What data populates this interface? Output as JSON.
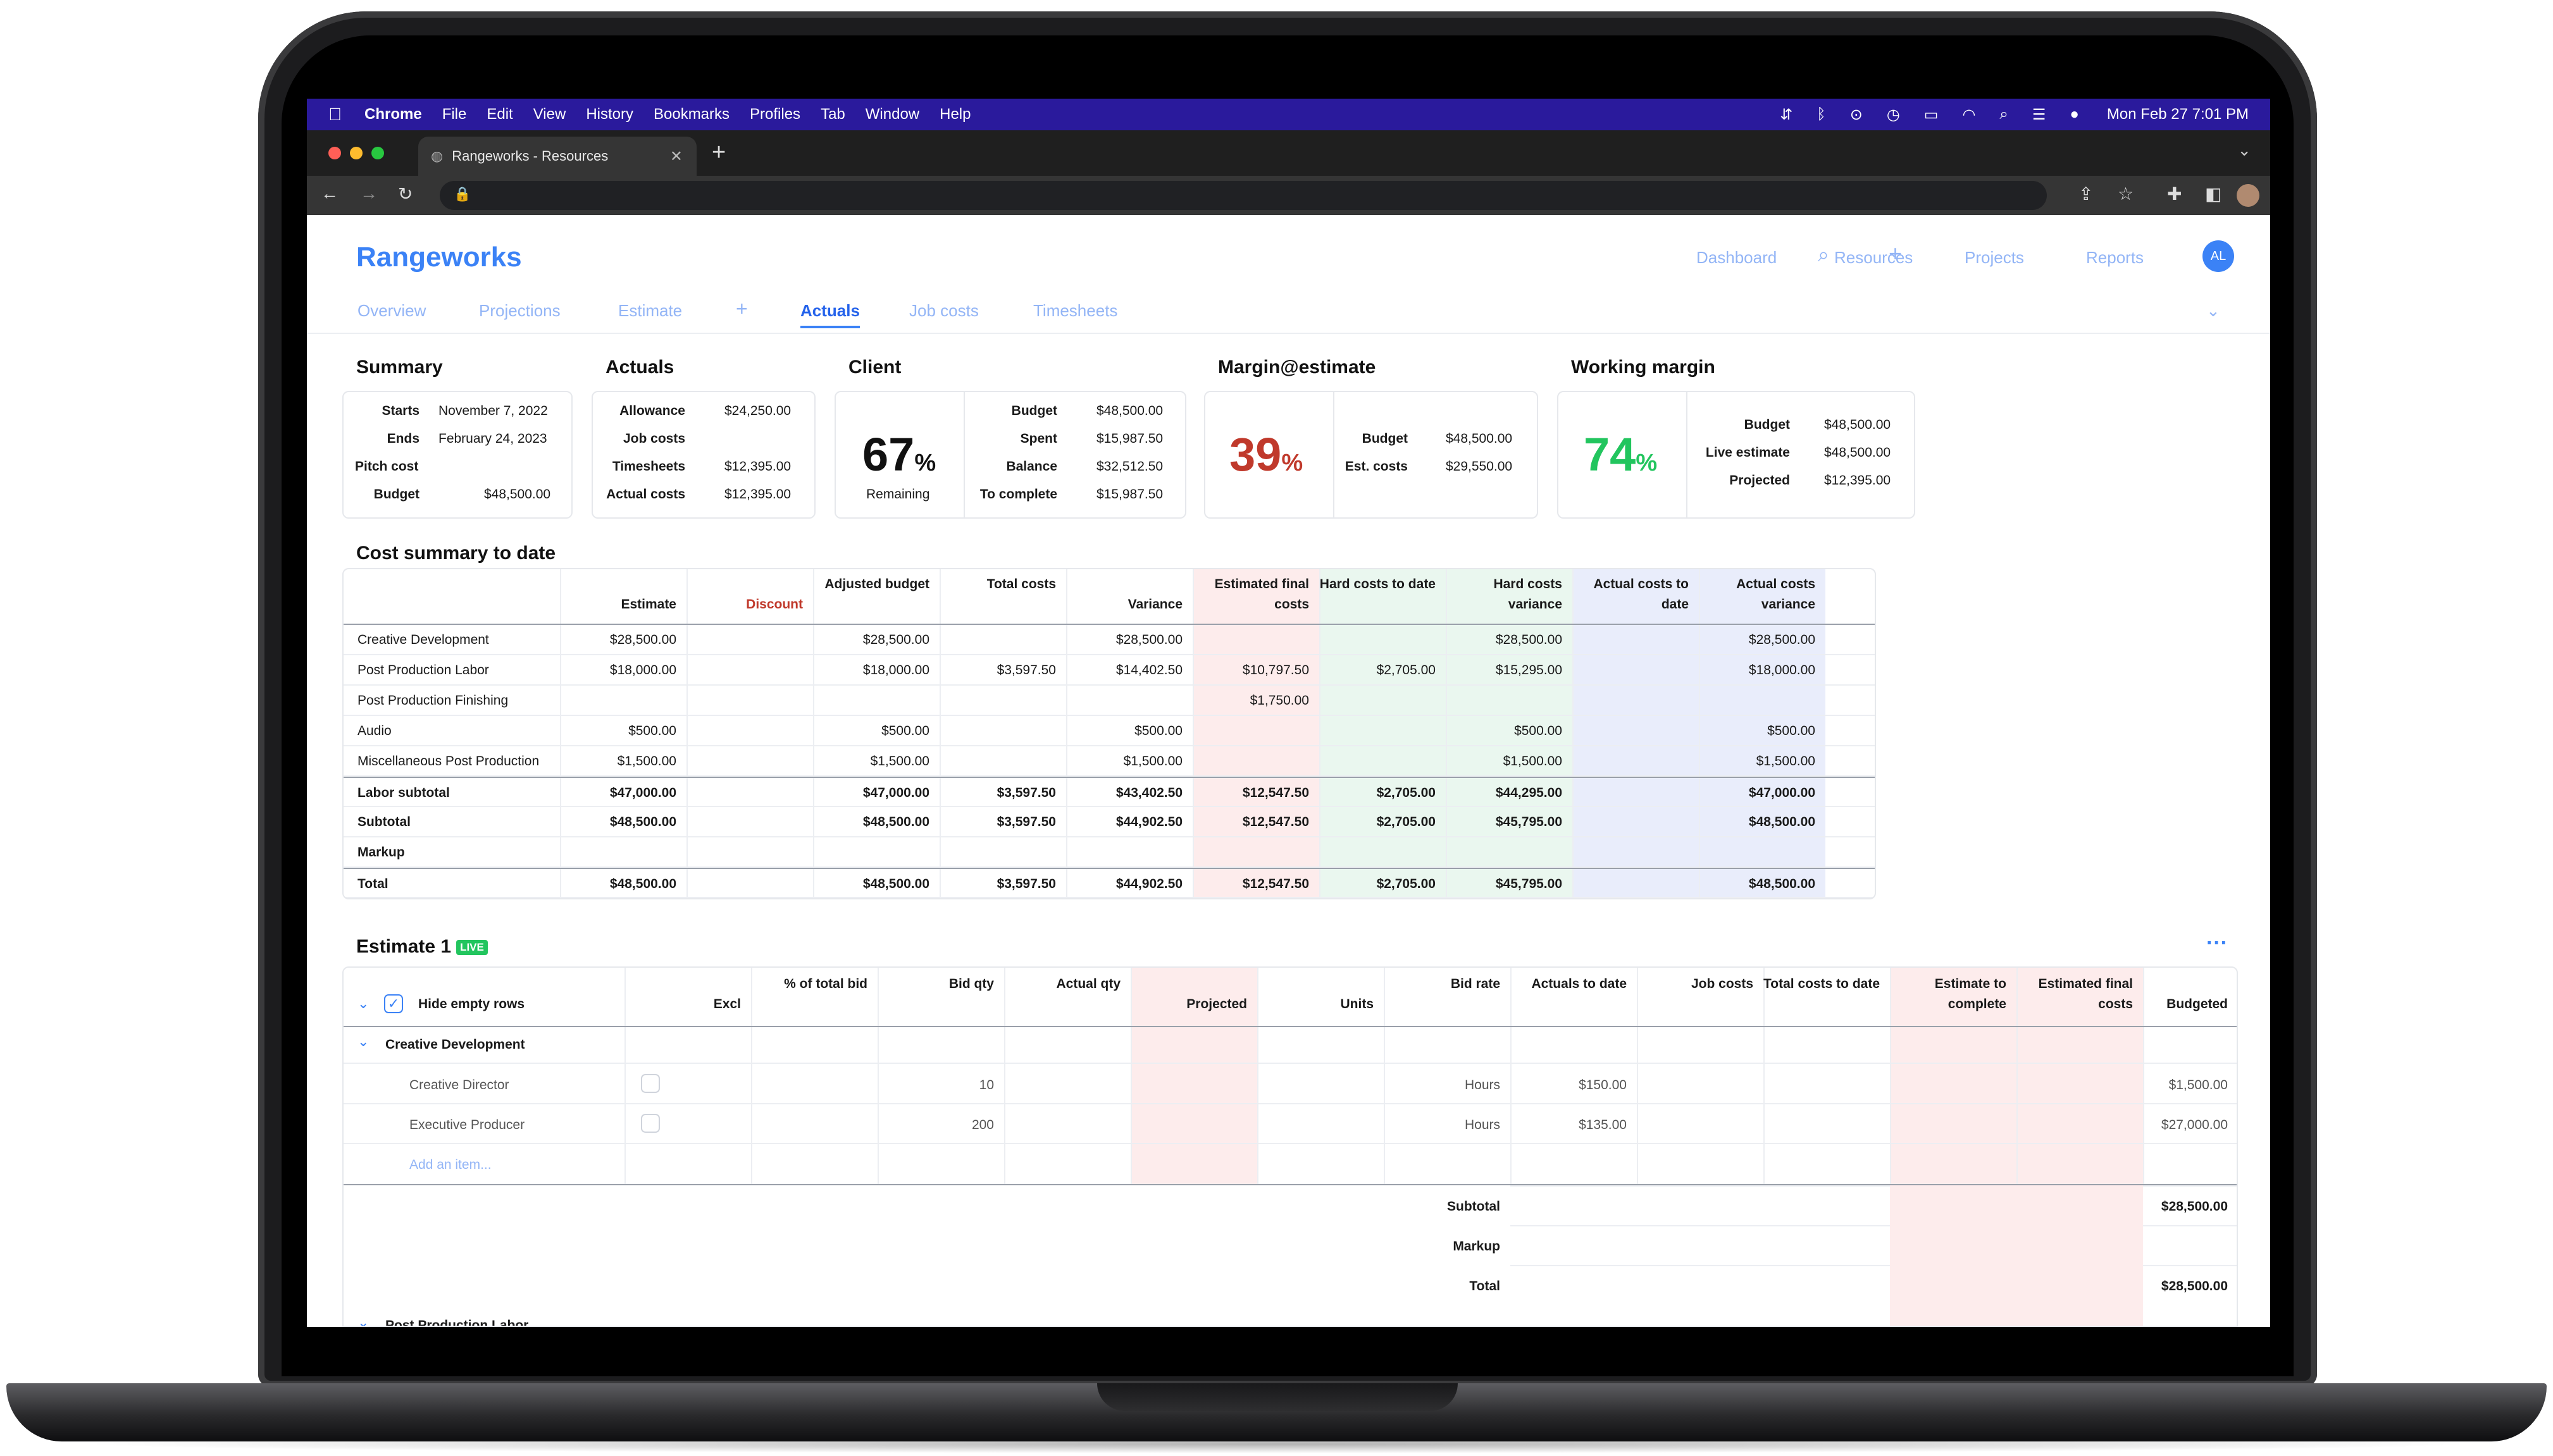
{
  "menubar": {
    "app": "Chrome",
    "items": [
      "File",
      "Edit",
      "View",
      "History",
      "Bookmarks",
      "Profiles",
      "Tab",
      "Window",
      "Help"
    ],
    "clock": "Mon Feb 27  7:01 PM"
  },
  "browser": {
    "tab_title": "Rangeworks - Resources"
  },
  "app": {
    "brand": "Rangeworks",
    "topnav": [
      "Dashboard",
      "Resources",
      "Projects",
      "Reports"
    ],
    "avatar": "AL",
    "subnav": [
      "Overview",
      "Projections",
      "Estimate",
      "Actuals",
      "Job costs",
      "Timesheets"
    ],
    "active_subnav": "Actuals"
  },
  "summary": {
    "title": "Summary",
    "rows": [
      {
        "label": "Starts",
        "value": "November 7, 2022"
      },
      {
        "label": "Ends",
        "value": "February 24, 2023"
      },
      {
        "label": "Pitch cost",
        "value": ""
      },
      {
        "label": "Budget",
        "value": "$48,500.00"
      }
    ]
  },
  "actuals": {
    "title": "Actuals",
    "rows": [
      {
        "label": "Allowance",
        "value": "$24,250.00"
      },
      {
        "label": "Job costs",
        "value": ""
      },
      {
        "label": "Timesheets",
        "value": "$12,395.00"
      },
      {
        "label": "Actual costs",
        "value": "$12,395.00"
      }
    ]
  },
  "client": {
    "title": "Client",
    "percent": "67",
    "percent_sign": "%",
    "caption": "Remaining",
    "rows": [
      {
        "label": "Budget",
        "value": "$48,500.00"
      },
      {
        "label": "Spent",
        "value": "$15,987.50"
      },
      {
        "label": "Balance",
        "value": "$32,512.50"
      },
      {
        "label": "To complete",
        "value": "$15,987.50"
      }
    ]
  },
  "margin_estimate": {
    "title": "Margin@estimate",
    "percent": "39",
    "percent_sign": "%",
    "color": "#c0392b",
    "rows": [
      {
        "label": "Budget",
        "value": "$48,500.00"
      },
      {
        "label": "Est. costs",
        "value": "$29,550.00"
      }
    ]
  },
  "working_margin": {
    "title": "Working margin",
    "percent": "74",
    "percent_sign": "%",
    "color": "#22c55e",
    "rows": [
      {
        "label": "Budget",
        "value": "$48,500.00"
      },
      {
        "label": "Live estimate",
        "value": "$48,500.00"
      },
      {
        "label": "Projected",
        "value": "$12,395.00"
      }
    ]
  },
  "cost_summary": {
    "title": "Cost summary to date",
    "headers": [
      "Estimate",
      "Discount",
      "Adjusted budget",
      "Total costs",
      "Variance",
      "Estimated final costs",
      "Hard costs to date",
      "Hard costs variance",
      "Actual costs to date",
      "Actual costs variance"
    ],
    "rows": [
      {
        "label": "Creative Development",
        "bold": false,
        "cells": [
          "$28,500.00",
          "",
          "$28,500.00",
          "",
          "$28,500.00",
          "",
          "",
          "$28,500.00",
          "",
          "$28,500.00"
        ]
      },
      {
        "label": "Post Production Labor",
        "bold": false,
        "cells": [
          "$18,000.00",
          "",
          "$18,000.00",
          "$3,597.50",
          "$14,402.50",
          "$10,797.50",
          "$2,705.00",
          "$15,295.00",
          "",
          "$18,000.00"
        ]
      },
      {
        "label": "Post Production Finishing",
        "bold": false,
        "cells": [
          "",
          "",
          "",
          "",
          "",
          "$1,750.00",
          "",
          "",
          "",
          ""
        ]
      },
      {
        "label": "Audio",
        "bold": false,
        "cells": [
          "$500.00",
          "",
          "$500.00",
          "",
          "$500.00",
          "",
          "",
          "$500.00",
          "",
          "$500.00"
        ]
      },
      {
        "label": "Miscellaneous Post Production",
        "bold": false,
        "cells": [
          "$1,500.00",
          "",
          "$1,500.00",
          "",
          "$1,500.00",
          "",
          "",
          "$1,500.00",
          "",
          "$1,500.00"
        ]
      },
      {
        "label": "Labor subtotal",
        "bold": true,
        "cells": [
          "$47,000.00",
          "",
          "$47,000.00",
          "$3,597.50",
          "$43,402.50",
          "$12,547.50",
          "$2,705.00",
          "$44,295.00",
          "",
          "$47,000.00"
        ]
      },
      {
        "label": "Subtotal",
        "bold": true,
        "cells": [
          "$48,500.00",
          "",
          "$48,500.00",
          "$3,597.50",
          "$44,902.50",
          "$12,547.50",
          "$2,705.00",
          "$45,795.00",
          "",
          "$48,500.00"
        ]
      },
      {
        "label": "Markup",
        "bold": true,
        "cells": [
          "",
          "",
          "",
          "",
          "",
          "",
          "",
          "",
          "",
          ""
        ]
      },
      {
        "label": "Total",
        "bold": true,
        "cells": [
          "$48,500.00",
          "",
          "$48,500.00",
          "$3,597.50",
          "$44,902.50",
          "$12,547.50",
          "$2,705.00",
          "$45,795.00",
          "",
          "$48,500.00"
        ]
      }
    ]
  },
  "estimate": {
    "title": "Estimate 1",
    "badge": "LIVE",
    "hide_empty": "Hide empty rows",
    "headers": [
      "Excl",
      "% of total bid",
      "Bid qty",
      "Actual qty",
      "Projected",
      "Units",
      "Bid rate",
      "Actuals to date",
      "Job costs",
      "Total costs to date",
      "Estimate to complete",
      "Estimated final costs",
      "Budgeted"
    ],
    "group": "Creative Development",
    "items": [
      {
        "name": "Creative Director",
        "bid_qty": "10",
        "units": "Hours",
        "rate": "$150.00",
        "budgeted": "$1,500.00"
      },
      {
        "name": "Executive Producer",
        "bid_qty": "200",
        "units": "Hours",
        "rate": "$135.00",
        "budgeted": "$27,000.00"
      }
    ],
    "add_item": "Add an item...",
    "totals": [
      {
        "label": "Subtotal",
        "value": "$28,500.00"
      },
      {
        "label": "Markup",
        "value": ""
      },
      {
        "label": "Total",
        "value": "$28,500.00"
      }
    ],
    "next_group": "Post Production Labor"
  }
}
